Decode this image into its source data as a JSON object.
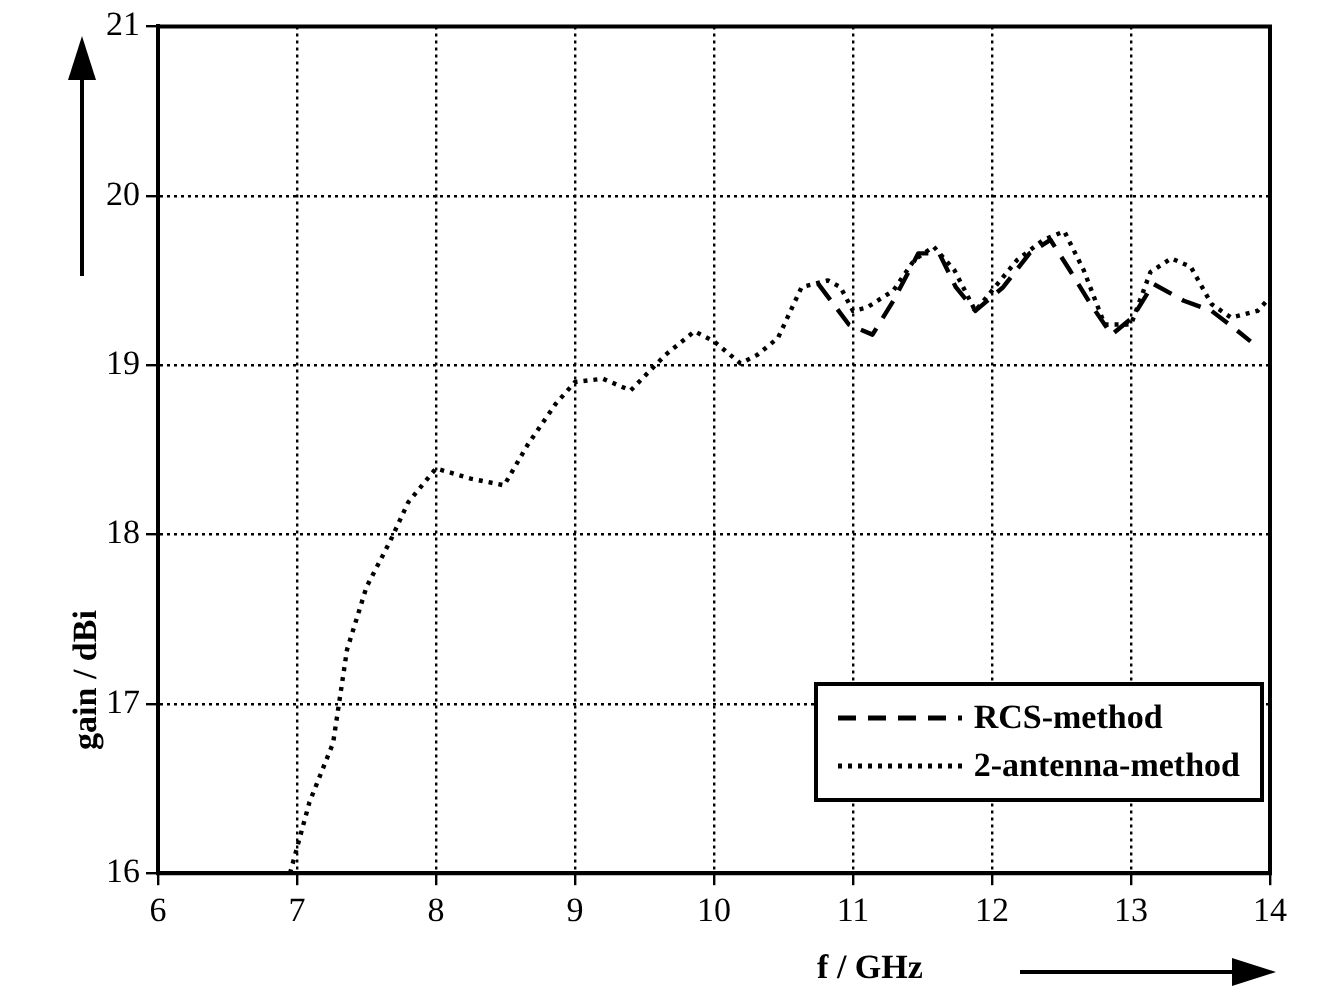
{
  "chart_data": {
    "type": "line",
    "xlabel": "f / GHz",
    "ylabel": "gain / dBi",
    "xlim": [
      6,
      14
    ],
    "xticks": [
      6,
      7,
      8,
      9,
      10,
      11,
      12,
      13,
      14
    ],
    "ylim": [
      16,
      21
    ],
    "yticks": [
      16,
      17,
      18,
      19,
      20,
      21
    ],
    "grid": true,
    "legend": "bottom right",
    "marker": "none",
    "series": [
      {
        "name": "RCS-method",
        "color": "#000000",
        "line_style": "dashed",
        "x": [
          10.75,
          10.97,
          11.14,
          11.29,
          11.47,
          11.62,
          11.74,
          11.88,
          12.08,
          12.27,
          12.42,
          12.56,
          12.71,
          12.86,
          13.01,
          13.16,
          13.38,
          13.58,
          13.77,
          13.86
        ],
        "values": [
          19.48,
          19.24,
          19.18,
          19.38,
          19.66,
          19.66,
          19.46,
          19.32,
          19.46,
          19.66,
          19.74,
          19.56,
          19.36,
          19.18,
          19.28,
          19.48,
          19.38,
          19.32,
          19.2,
          19.14
        ]
      },
      {
        "name": "2-antenna-method",
        "color": "#000000",
        "line_style": "dotted",
        "x": [
          6.95,
          7.09,
          7.26,
          7.36,
          7.5,
          7.67,
          7.8,
          8.0,
          8.25,
          8.49,
          8.66,
          8.86,
          9.0,
          9.2,
          9.4,
          9.65,
          9.86,
          10.0,
          10.19,
          10.31,
          10.46,
          10.63,
          10.82,
          10.91,
          11.0,
          11.1,
          11.29,
          11.44,
          11.58,
          11.73,
          11.88,
          12.0,
          12.18,
          12.37,
          12.52,
          12.66,
          12.81,
          13.0,
          13.14,
          13.29,
          13.43,
          13.58,
          13.72,
          13.91,
          14.0
        ],
        "values": [
          16.0,
          16.42,
          16.77,
          17.32,
          17.69,
          17.96,
          18.19,
          18.39,
          18.33,
          18.29,
          18.53,
          18.77,
          18.9,
          18.92,
          18.85,
          19.06,
          19.2,
          19.14,
          19.01,
          19.06,
          19.16,
          19.46,
          19.5,
          19.46,
          19.32,
          19.34,
          19.44,
          19.62,
          19.7,
          19.56,
          19.32,
          19.44,
          19.62,
          19.74,
          19.79,
          19.56,
          19.24,
          19.24,
          19.55,
          19.63,
          19.58,
          19.36,
          19.28,
          19.32,
          19.4
        ]
      }
    ]
  }
}
